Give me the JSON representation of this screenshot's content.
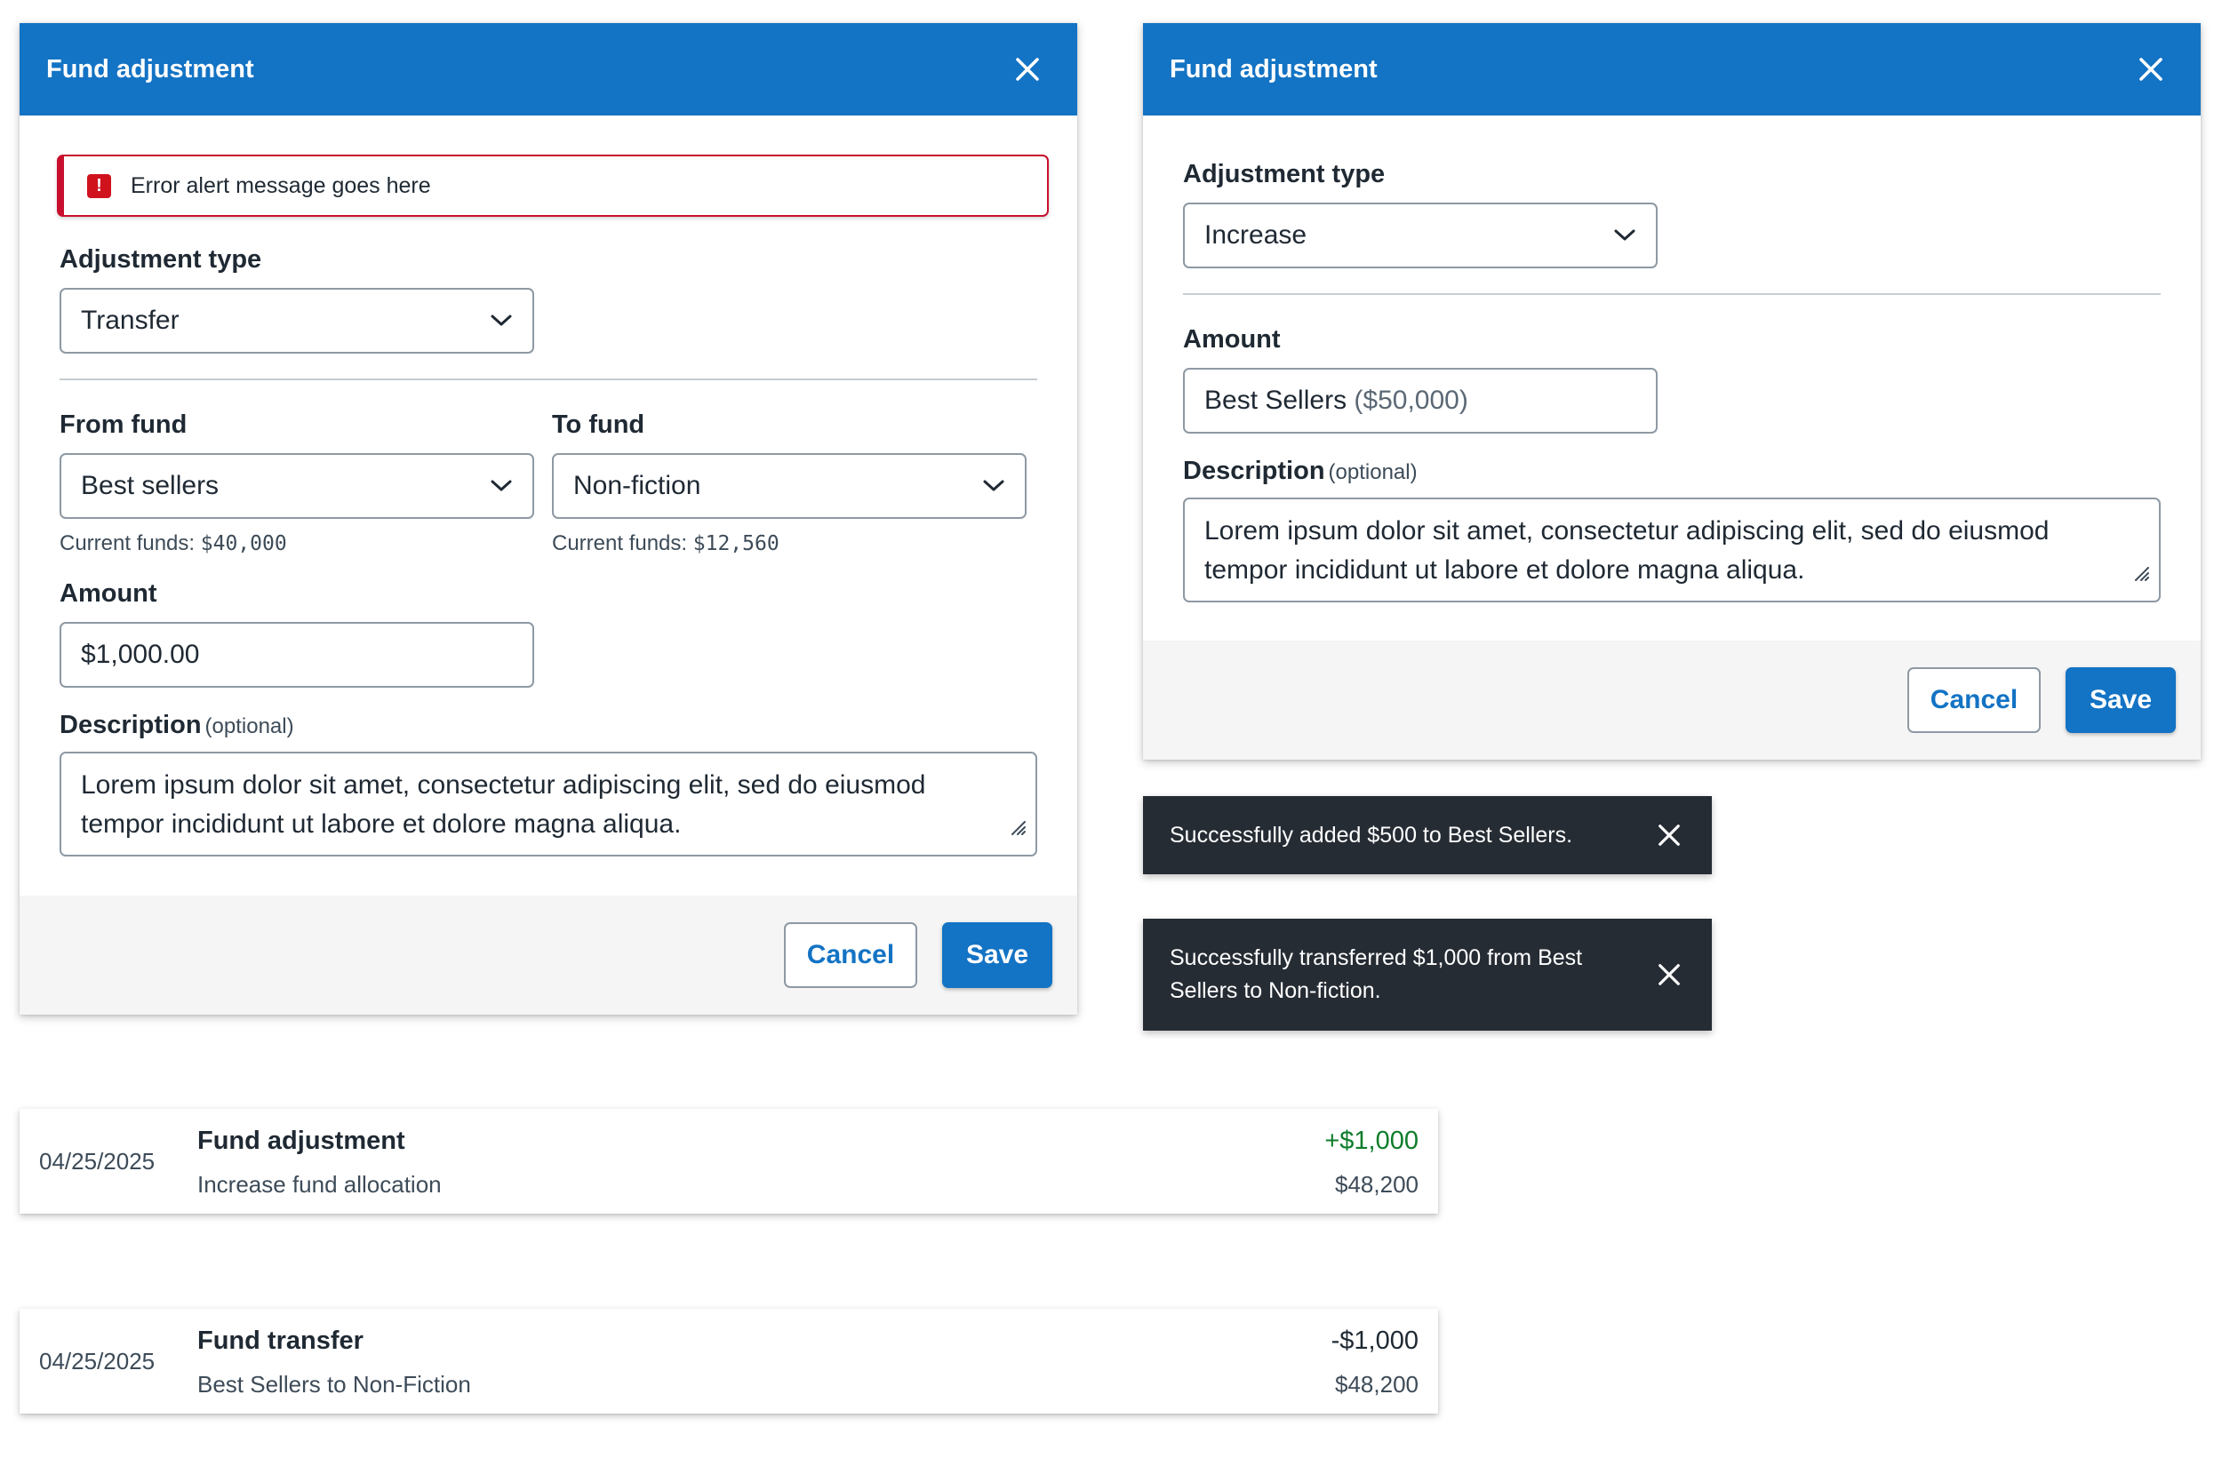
{
  "colors": {
    "header_blue": "#1373c4",
    "error_red": "#c8102e",
    "toast_bg": "#262c34",
    "positive_green": "#0e7d2b"
  },
  "modal_transfer": {
    "title": "Fund adjustment",
    "alert_text": "Error alert message goes here",
    "adjustment_type_label": "Adjustment type",
    "adjustment_type_value": "Transfer",
    "from_fund_label": "From fund",
    "from_fund_value": "Best sellers",
    "from_fund_hint_prefix": "Current funds: ",
    "from_fund_hint_value": "$40,000",
    "to_fund_label": "To fund",
    "to_fund_value": "Non-fiction",
    "to_fund_hint_prefix": "Current funds: ",
    "to_fund_hint_value": "$12,560",
    "amount_label": "Amount",
    "amount_value": "$1,000.00",
    "description_label": "Description",
    "description_optional": "(optional)",
    "description_value": "Lorem ipsum dolor sit amet, consectetur adipiscing elit, sed do eiusmod tempor incididunt ut labore et dolore magna aliqua.",
    "cancel_label": "Cancel",
    "save_label": "Save"
  },
  "modal_increase": {
    "title": "Fund adjustment",
    "adjustment_type_label": "Adjustment type",
    "adjustment_type_value": "Increase",
    "amount_label": "Amount",
    "amount_fund": "Best Sellers",
    "amount_fund_balance": "($50,000)",
    "description_label": "Description",
    "description_optional": "(optional)",
    "description_value": "Lorem ipsum dolor sit amet, consectetur adipiscing elit, sed do eiusmod tempor incididunt ut labore et dolore magna aliqua.",
    "cancel_label": "Cancel",
    "save_label": "Save"
  },
  "toasts": [
    {
      "text": "Successfully added $500 to Best Sellers."
    },
    {
      "text": "Successfully transferred $1,000 from Best Sellers to Non-fiction."
    }
  ],
  "ledger": [
    {
      "date": "04/25/2025",
      "title": "Fund adjustment",
      "subtitle": "Increase fund allocation",
      "amount": "+$1,000",
      "balance": "$48,200",
      "amount_color": "#0e7d2b"
    },
    {
      "date": "04/25/2025",
      "title": "Fund transfer",
      "subtitle": "Best Sellers to Non-Fiction",
      "amount": "-$1,000",
      "balance": "$48,200",
      "amount_color": "#1f2933"
    }
  ]
}
